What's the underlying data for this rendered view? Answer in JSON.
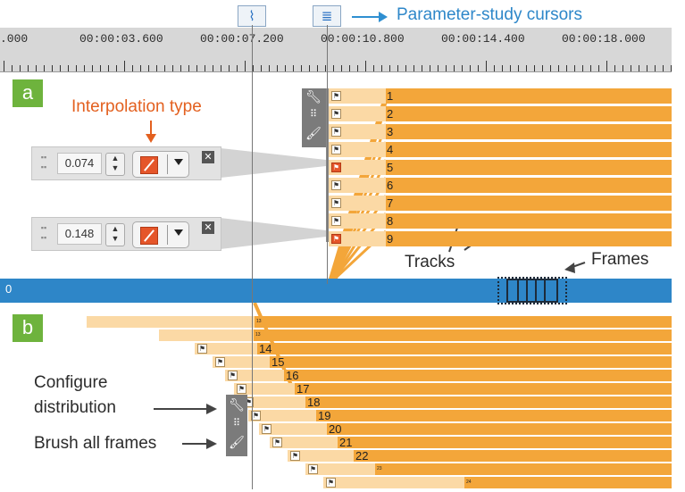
{
  "header": {
    "cursor_icon_1": "interp-cursor-icon",
    "cursor_icon_2": "brush-cursor-icon",
    "annotation": "Parameter-study cursors",
    "accent": "#2e87c9"
  },
  "timeline": {
    "labels": [
      ".000",
      "00:00:03.600",
      "00:00:07.200",
      "00:00:10.800",
      "00:00:14.400",
      "00:00:18.000"
    ],
    "bar_start_label": "0"
  },
  "section_a": {
    "badge": "a",
    "interp_annotation": "Interpolation type",
    "params": [
      {
        "value": "0.074"
      },
      {
        "value": "0.148"
      }
    ],
    "tracks": [
      "1",
      "2",
      "3",
      "4",
      "5",
      "6",
      "7",
      "8",
      "9"
    ],
    "tracks_annotation": "Tracks",
    "frames_annotation": "Frames"
  },
  "section_b": {
    "badge": "b",
    "configure_annotation": "Configure\ndistribution",
    "configure_line1": "Configure",
    "configure_line2": "distribution",
    "brush_annotation": "Brush all frames",
    "tracks": [
      "13",
      "13",
      "14",
      "15",
      "16",
      "17",
      "18",
      "19",
      "20",
      "21",
      "22",
      "23",
      "24"
    ]
  },
  "colors": {
    "track": "#f3a63a",
    "track_light": "#fbd9a5",
    "timeline_bar": "#2e86c8",
    "badge": "#6eb33d",
    "annotation_orange": "#e3601f"
  }
}
